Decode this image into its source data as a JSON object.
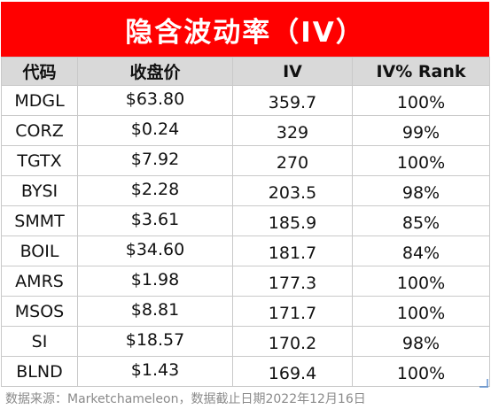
{
  "title": "隐含波动率（IV）",
  "headers": [
    "代码",
    "收盘价",
    "IV",
    "IV% Rank"
  ],
  "rows": [
    {
      "ticker": "MDGL",
      "price": "$63.80",
      "iv": "359.7",
      "rank": "100%"
    },
    {
      "ticker": "CORZ",
      "price": "$0.24",
      "iv": "329",
      "rank": "99%"
    },
    {
      "ticker": "TGTX",
      "price": "$7.92",
      "iv": "270",
      "rank": "100%"
    },
    {
      "ticker": "BYSI",
      "price": "$2.28",
      "iv": "203.5",
      "rank": "98%"
    },
    {
      "ticker": "SMMT",
      "price": "$3.61",
      "iv": "185.9",
      "rank": "85%"
    },
    {
      "ticker": "BOIL",
      "price": "$34.60",
      "iv": "181.7",
      "rank": "84%"
    },
    {
      "ticker": "AMRS",
      "price": "$1.98",
      "iv": "177.3",
      "rank": "100%"
    },
    {
      "ticker": "MSOS",
      "price": "$8.81",
      "iv": "171.7",
      "rank": "100%"
    },
    {
      "ticker": "SI",
      "price": "$18.57",
      "iv": "170.2",
      "rank": "98%"
    },
    {
      "ticker": "BLND",
      "price": "$1.43",
      "iv": "169.4",
      "rank": "100%"
    }
  ],
  "footer": "数据来源：Marketchameleon，数据截止日期2022年12月16日",
  "colors": {
    "title_bg": "#ff0000",
    "title_text": "#ffffff",
    "header_bg": "#d9d9d9"
  }
}
